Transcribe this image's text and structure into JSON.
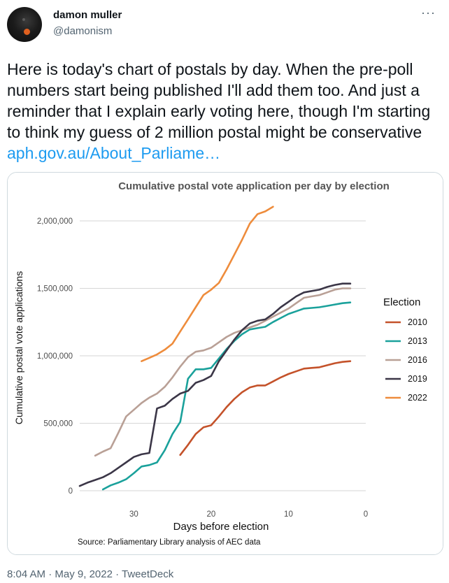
{
  "user": {
    "name": "damon muller",
    "handle": "@damonism"
  },
  "tweet": {
    "text": "Here is today's chart of postals by day. When the pre-poll numbers start being published I'll add them too. And just a reminder that I explain early voting here, though I'm starting to think my guess of 2 million postal might be conservative ",
    "link": "aph.gov.au/About_Parliame…"
  },
  "footer": {
    "time": "8:04 AM",
    "sep1": " · ",
    "date": "May 9, 2022",
    "sep2": " · ",
    "client": "TweetDeck"
  },
  "icons": {
    "more": "more-options-icon",
    "avatar": "dog-avatar"
  },
  "chart_data": {
    "type": "line",
    "title": "Cumulative postal vote application per day by election",
    "xlabel": "Days before election",
    "ylabel": "Cumulative postal vote applications",
    "source": "Source: Parliamentary Library analysis of AEC data",
    "xlim": [
      37,
      0
    ],
    "ylim": [
      0,
      2150000
    ],
    "x_reversed": true,
    "grid": true,
    "x_ticks": [
      30,
      20,
      10,
      0
    ],
    "x_tick_labels": [
      "30",
      "20",
      "10",
      "0"
    ],
    "y_ticks": [
      0,
      500000,
      1000000,
      1500000,
      2000000
    ],
    "y_tick_labels": [
      "0",
      "500,000",
      "1,000,000",
      "1,500,000",
      "2,000,000"
    ],
    "legend_title": "Election",
    "legend_position": "right",
    "series": [
      {
        "name": "2010",
        "color": "#c4522a",
        "x": [
          24,
          23,
          22,
          21,
          20,
          19,
          18,
          17,
          16,
          15,
          14,
          13,
          12,
          11,
          10,
          9,
          8,
          7,
          6,
          5,
          4,
          3,
          2
        ],
        "y": [
          265000,
          340000,
          420000,
          470000,
          485000,
          550000,
          620000,
          680000,
          730000,
          765000,
          780000,
          780000,
          810000,
          840000,
          865000,
          885000,
          905000,
          910000,
          915000,
          930000,
          945000,
          955000,
          960000
        ]
      },
      {
        "name": "2013",
        "color": "#1aa19b",
        "x": [
          34,
          33,
          32,
          31,
          30,
          29,
          28,
          27,
          26,
          25,
          24,
          23,
          22,
          21,
          20,
          19,
          18,
          17,
          16,
          15,
          14,
          13,
          12,
          11,
          10,
          9,
          8,
          7,
          6,
          5,
          4,
          3,
          2
        ],
        "y": [
          10000,
          40000,
          60000,
          85000,
          130000,
          180000,
          190000,
          210000,
          300000,
          420000,
          510000,
          830000,
          900000,
          900000,
          910000,
          980000,
          1050000,
          1110000,
          1160000,
          1195000,
          1205000,
          1215000,
          1250000,
          1280000,
          1310000,
          1330000,
          1350000,
          1355000,
          1360000,
          1370000,
          1380000,
          1390000,
          1395000
        ]
      },
      {
        "name": "2016",
        "color": "#b9a096",
        "x": [
          35,
          34,
          33,
          32,
          31,
          30,
          29,
          28,
          27,
          26,
          25,
          24,
          23,
          22,
          21,
          20,
          19,
          18,
          17,
          16,
          15,
          14,
          13,
          12,
          11,
          10,
          9,
          8,
          7,
          6,
          5,
          4,
          3,
          2
        ],
        "y": [
          260000,
          290000,
          315000,
          430000,
          550000,
          600000,
          650000,
          690000,
          720000,
          770000,
          840000,
          920000,
          990000,
          1030000,
          1040000,
          1060000,
          1100000,
          1140000,
          1170000,
          1190000,
          1210000,
          1230000,
          1260000,
          1290000,
          1320000,
          1350000,
          1390000,
          1430000,
          1440000,
          1450000,
          1470000,
          1490000,
          1500000,
          1500000
        ]
      },
      {
        "name": "2019",
        "color": "#3b3647",
        "x": [
          37,
          36,
          35,
          34,
          33,
          32,
          31,
          30,
          29,
          28,
          27,
          26,
          25,
          24,
          23,
          22,
          21,
          20,
          19,
          18,
          17,
          16,
          15,
          14,
          13,
          12,
          11,
          10,
          9,
          8,
          7,
          6,
          5,
          4,
          3,
          2
        ],
        "y": [
          35000,
          60000,
          80000,
          100000,
          130000,
          170000,
          210000,
          250000,
          270000,
          280000,
          610000,
          630000,
          680000,
          720000,
          740000,
          800000,
          820000,
          850000,
          960000,
          1040000,
          1120000,
          1190000,
          1240000,
          1260000,
          1270000,
          1310000,
          1360000,
          1400000,
          1440000,
          1470000,
          1480000,
          1490000,
          1510000,
          1525000,
          1535000,
          1535000
        ]
      },
      {
        "name": "2022",
        "color": "#ee8c3c",
        "x": [
          29,
          28,
          27,
          26,
          25,
          24,
          23,
          22,
          21,
          20,
          19,
          18,
          17,
          16,
          15,
          14,
          13,
          12
        ],
        "y": [
          960000,
          985000,
          1010000,
          1045000,
          1090000,
          1180000,
          1270000,
          1360000,
          1450000,
          1490000,
          1540000,
          1640000,
          1750000,
          1860000,
          1980000,
          2050000,
          2070000,
          2105000
        ]
      }
    ]
  }
}
